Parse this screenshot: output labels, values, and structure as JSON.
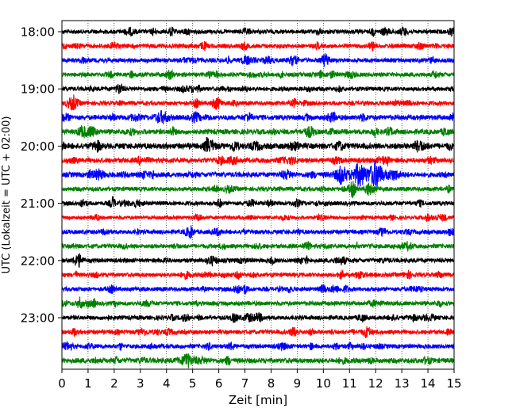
{
  "chart_data": {
    "type": "line",
    "title": "",
    "xlabel": "Zeit  [min]",
    "ylabel": "UTC (Lokalzeit = UTC + 02:00)",
    "xlim": [
      0,
      15
    ],
    "x_ticks": [
      "0",
      "1",
      "2",
      "3",
      "4",
      "5",
      "6",
      "7",
      "8",
      "9",
      "10",
      "11",
      "12",
      "13",
      "14",
      "15"
    ],
    "y_ticks": [
      "18:00",
      "19:00",
      "20:00",
      "21:00",
      "22:00",
      "23:00"
    ],
    "grid": "vertical dotted",
    "row_interval_minutes": 15,
    "start_time": "18:00",
    "colors": [
      "#000000",
      "#ff0000",
      "#0000ff",
      "#008000"
    ],
    "rows": [
      {
        "time": "18:00",
        "color": "#000000",
        "amplitude": 0.12
      },
      {
        "time": "18:15",
        "color": "#ff0000",
        "amplitude": 0.12
      },
      {
        "time": "18:30",
        "color": "#0000ff",
        "amplitude": 0.12
      },
      {
        "time": "18:45",
        "color": "#008000",
        "amplitude": 0.12
      },
      {
        "time": "19:00",
        "color": "#000000",
        "amplitude": 0.12
      },
      {
        "time": "19:15",
        "color": "#ff0000",
        "amplitude": 0.12
      },
      {
        "time": "19:30",
        "color": "#0000ff",
        "amplitude": 0.14
      },
      {
        "time": "19:45",
        "color": "#008000",
        "amplitude": 0.14
      },
      {
        "time": "20:00",
        "color": "#000000",
        "amplitude": 0.16
      },
      {
        "time": "20:15",
        "color": "#ff0000",
        "amplitude": 0.14
      },
      {
        "time": "20:30",
        "color": "#0000ff",
        "amplitude": 0.14,
        "event": {
          "start_min": 9.9,
          "peak_min": 11.7,
          "end_min": 13.4,
          "peak_amplitude": 0.75
        }
      },
      {
        "time": "20:45",
        "color": "#008000",
        "amplitude": 0.12
      },
      {
        "time": "21:00",
        "color": "#000000",
        "amplitude": 0.12
      },
      {
        "time": "21:15",
        "color": "#ff0000",
        "amplitude": 0.1
      },
      {
        "time": "21:30",
        "color": "#0000ff",
        "amplitude": 0.12
      },
      {
        "time": "21:45",
        "color": "#008000",
        "amplitude": 0.12
      },
      {
        "time": "22:00",
        "color": "#000000",
        "amplitude": 0.12
      },
      {
        "time": "22:15",
        "color": "#ff0000",
        "amplitude": 0.12
      },
      {
        "time": "22:30",
        "color": "#0000ff",
        "amplitude": 0.12
      },
      {
        "time": "22:45",
        "color": "#008000",
        "amplitude": 0.12
      },
      {
        "time": "23:00",
        "color": "#000000",
        "amplitude": 0.12
      },
      {
        "time": "23:15",
        "color": "#ff0000",
        "amplitude": 0.12
      },
      {
        "time": "23:30",
        "color": "#0000ff",
        "amplitude": 0.12
      },
      {
        "time": "23:45",
        "color": "#008000",
        "amplitude": 0.14
      }
    ]
  }
}
